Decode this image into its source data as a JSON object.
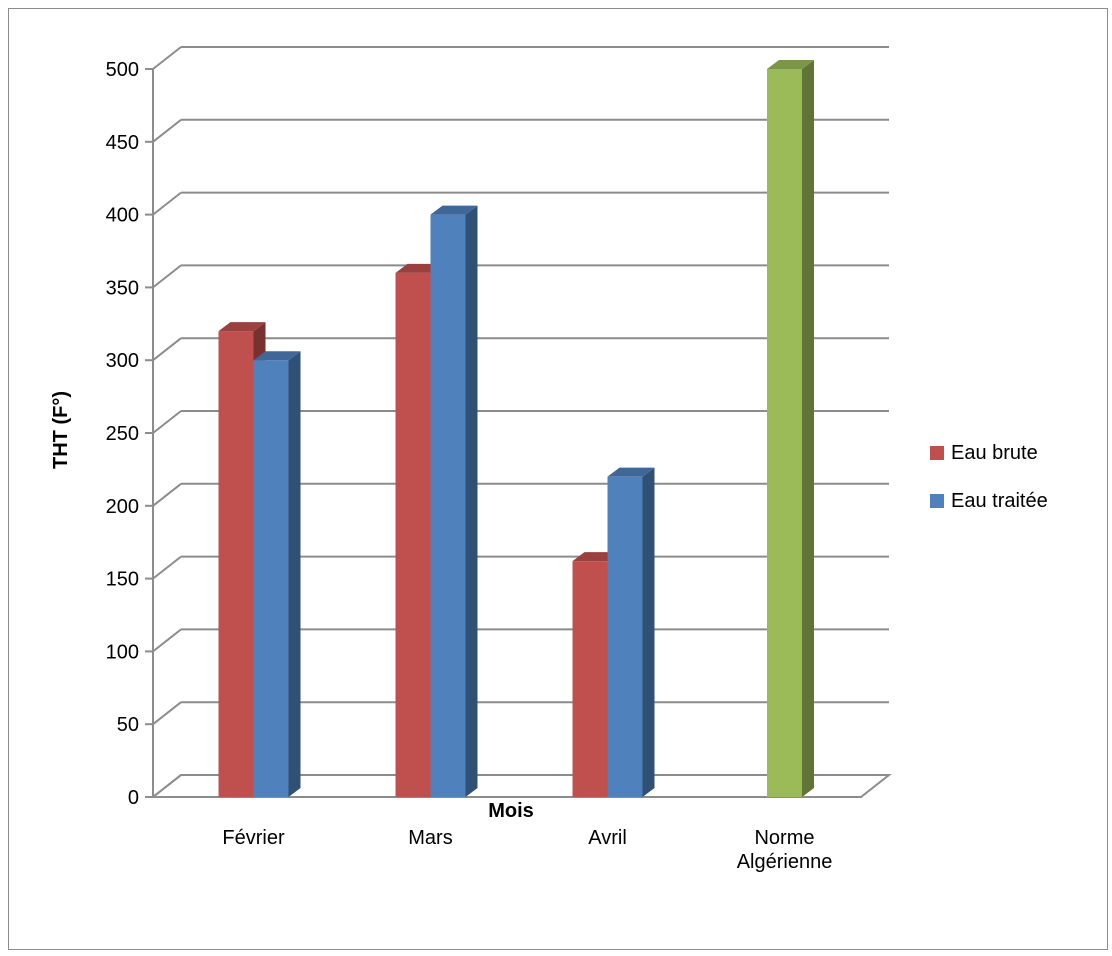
{
  "chart_data": {
    "type": "bar",
    "title": "",
    "xlabel": "Mois",
    "ylabel": "THT (F°)",
    "ylim": [
      0,
      500
    ],
    "yticks": [
      0,
      50,
      100,
      150,
      200,
      250,
      300,
      350,
      400,
      450,
      500
    ],
    "categories": [
      [
        "Février"
      ],
      [
        "Mars"
      ],
      [
        "Avril"
      ],
      [
        "Norme",
        "Algérienne"
      ]
    ],
    "series": [
      {
        "name": "Eau brute",
        "color": "#C0504D",
        "values": [
          320,
          360,
          162,
          null
        ]
      },
      {
        "name": "Eau traitée",
        "color": "#4F81BD",
        "values": [
          300,
          400,
          220,
          null
        ]
      },
      {
        "name": "",
        "color": "#9BBB59",
        "values": [
          null,
          null,
          null,
          500
        ]
      }
    ],
    "legend": {
      "position": "right",
      "entries": [
        "Eau brute",
        "Eau traitée"
      ]
    },
    "grid": true,
    "style": "3d-column"
  }
}
